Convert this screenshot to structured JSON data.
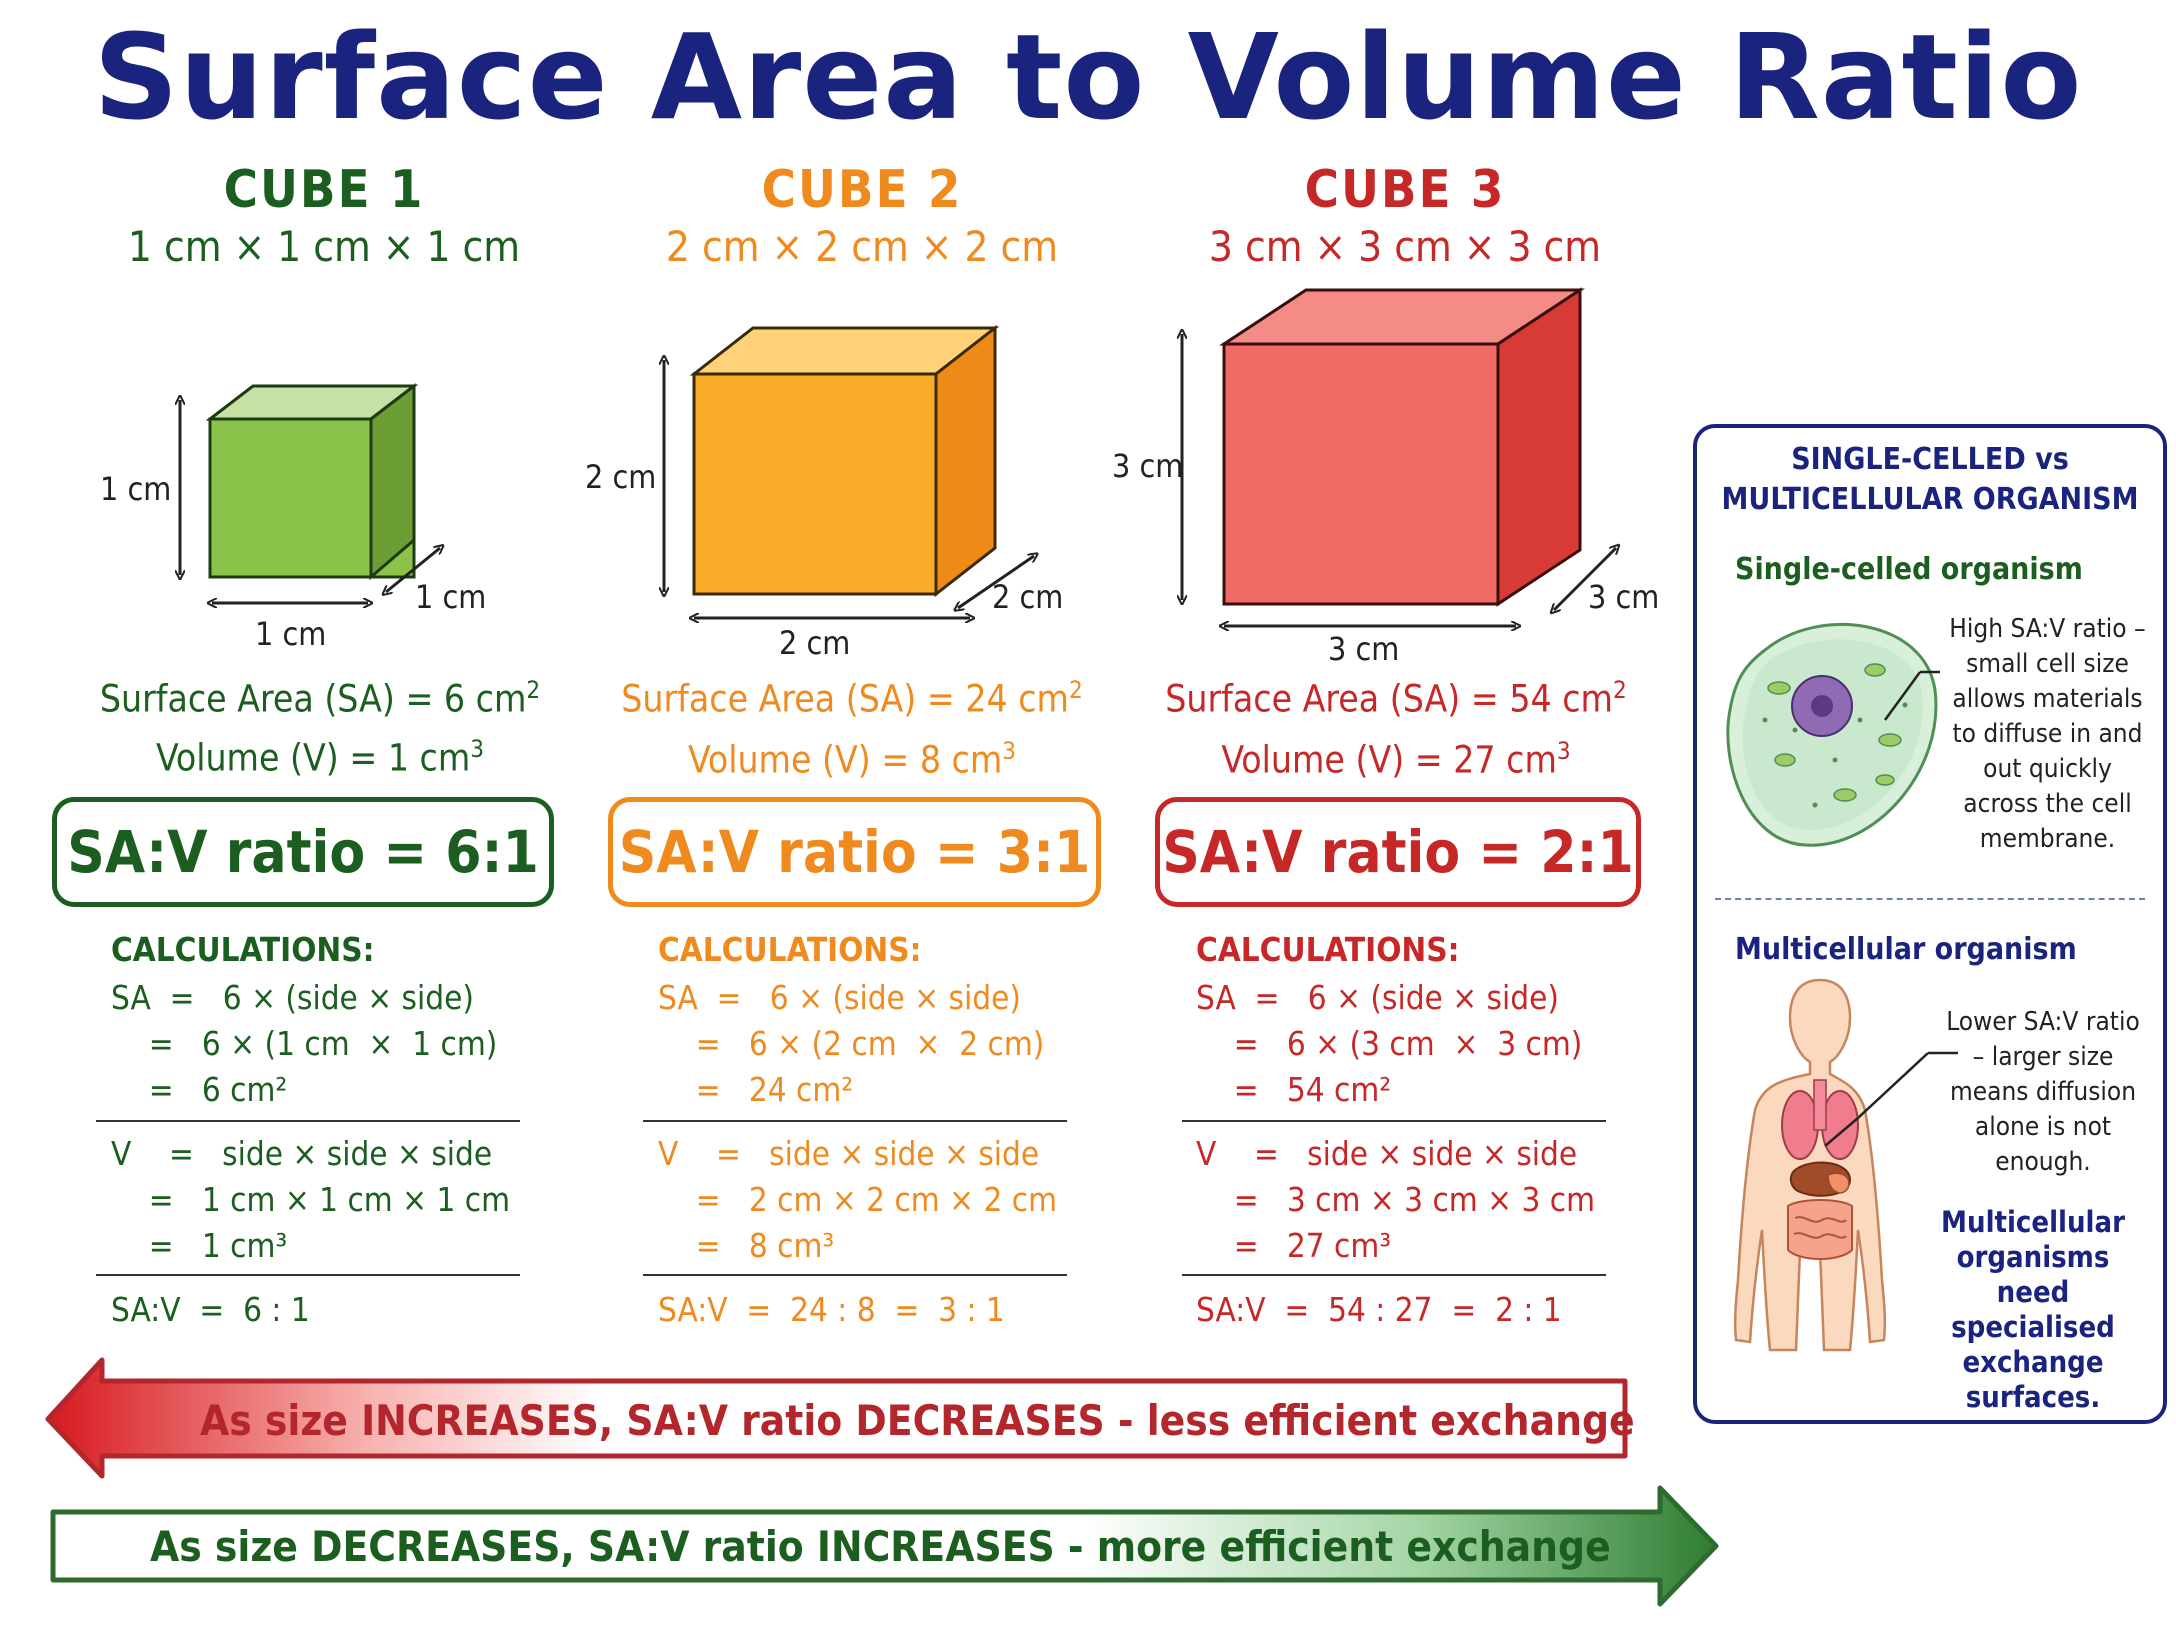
{
  "title": "Surface Area to Volume Ratio",
  "colors": {
    "cube1": "#1b5e20",
    "cube2": "#ef8a1e",
    "cube3": "#c62828",
    "navy": "#1a237e"
  },
  "cubes": [
    {
      "name": "CUBE 1",
      "dims": "1 cm × 1 cm × 1 cm",
      "side_label": "1 cm",
      "sa_text": "Surface Area (SA) = 6 cm",
      "vol_text": "Volume (V) = 1 cm",
      "ratio": "SA:V ratio = 6:1",
      "calc_title": "CALCULATIONS:",
      "sa_lines": [
        "SA  =   6 × (side × side)",
        "    =   6 × (1 cm  ×  1 cm)",
        "    =   6 cm²"
      ],
      "v_lines": [
        "V    =   side × side × side",
        "    =   1 cm × 1 cm × 1 cm",
        "    =   1 cm³"
      ],
      "ratio_line": "SA:V  =  6 : 1"
    },
    {
      "name": "CUBE 2",
      "dims": "2 cm × 2 cm × 2 cm",
      "side_label": "2 cm",
      "sa_text": "Surface Area (SA) = 24 cm",
      "vol_text": "Volume (V) = 8 cm",
      "ratio": "SA:V ratio = 3:1",
      "calc_title": "CALCULATIONS:",
      "sa_lines": [
        "SA  =   6 × (side × side)",
        "    =   6 × (2 cm  ×  2 cm)",
        "    =   24 cm²"
      ],
      "v_lines": [
        "V    =   side × side × side",
        "    =   2 cm × 2 cm × 2 cm",
        "    =   8 cm³"
      ],
      "ratio_line": "SA:V  =  24 : 8  =  3 : 1"
    },
    {
      "name": "CUBE 3",
      "dims": "3 cm × 3 cm × 3 cm",
      "side_label": "3 cm",
      "sa_text": "Surface Area (SA) = 54 cm",
      "vol_text": "Volume (V) = 27 cm",
      "ratio": "SA:V ratio = 2:1",
      "calc_title": "CALCULATIONS:",
      "sa_lines": [
        "SA  =   6 × (side × side)",
        "    =   6 × (3 cm  ×  3 cm)",
        "    =   54 cm²"
      ],
      "v_lines": [
        "V    =   side × side × side",
        "    =   3 cm × 3 cm × 3 cm",
        "    =   27 cm³"
      ],
      "ratio_line": "SA:V  =  54 : 27  =  2 : 1"
    }
  ],
  "panel": {
    "heading": "SINGLE-CELLED vs MULTICELLULAR ORGANISM",
    "single_title": "Single-celled organism",
    "single_text": "High SA:V ratio – small cell size allows materials to diffuse in and out quickly across the cell membrane.",
    "multi_title": "Multicellular organism",
    "multi_text": "Lower SA:V ratio – larger size means diffusion alone is not enough.",
    "multi_note": "Multicellular organisms need specialised exchange surfaces."
  },
  "banners": {
    "increase": "As size INCREASES, SA:V ratio DECREASES - less efficient exchange",
    "decrease": "As size DECREASES, SA:V ratio INCREASES - more efficient exchange"
  },
  "icons": [
    "cell-icon",
    "human-body-icon",
    "arrow-left-icon",
    "arrow-right-icon"
  ]
}
